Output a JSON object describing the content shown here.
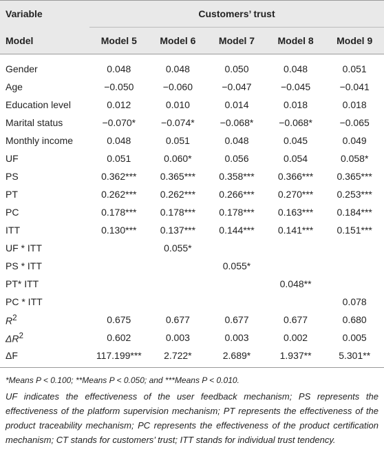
{
  "table": {
    "header": {
      "variable": "Variable",
      "group": "Customers’ trust",
      "model": "Model",
      "columns": [
        "Model 5",
        "Model 6",
        "Model 7",
        "Model 8",
        "Model 9"
      ]
    },
    "rows": [
      {
        "label": "Gender",
        "values": [
          "0.048",
          "0.048",
          "0.050",
          "0.048",
          "0.051"
        ]
      },
      {
        "label": "Age",
        "values": [
          "−0.050",
          "−0.060",
          "−0.047",
          "−0.045",
          "−0.041"
        ]
      },
      {
        "label": "Education level",
        "values": [
          "0.012",
          "0.010",
          "0.014",
          "0.018",
          "0.018"
        ]
      },
      {
        "label": "Marital status",
        "values": [
          "−0.070*",
          "−0.074*",
          "−0.068*",
          "−0.068*",
          "−0.065"
        ]
      },
      {
        "label": "Monthly income",
        "values": [
          "0.048",
          "0.051",
          "0.048",
          "0.045",
          "0.049"
        ]
      },
      {
        "label": "UF",
        "values": [
          "0.051",
          "0.060*",
          "0.056",
          "0.054",
          "0.058*"
        ]
      },
      {
        "label": "PS",
        "values": [
          "0.362***",
          "0.365***",
          "0.358***",
          "0.366***",
          "0.365***"
        ]
      },
      {
        "label": "PT",
        "values": [
          "0.262***",
          "0.262***",
          "0.266***",
          "0.270***",
          "0.253***"
        ]
      },
      {
        "label": "PC",
        "values": [
          "0.178***",
          "0.178***",
          "0.178***",
          "0.163***",
          "0.184***"
        ]
      },
      {
        "label": "ITT",
        "values": [
          "0.130***",
          "0.137***",
          "0.144***",
          "0.141***",
          "0.151***"
        ]
      },
      {
        "label": "UF * ITT",
        "values": [
          null,
          "0.055*",
          null,
          null,
          null
        ]
      },
      {
        "label": "PS * ITT",
        "values": [
          null,
          null,
          "0.055*",
          null,
          null
        ]
      },
      {
        "label": "PT* ITT",
        "values": [
          null,
          null,
          null,
          "0.048**",
          null
        ]
      },
      {
        "label": "PC * ITT",
        "values": [
          null,
          null,
          null,
          null,
          "0.078"
        ]
      },
      {
        "label": "R",
        "label_sup": "2",
        "values": [
          "0.675",
          "0.677",
          "0.677",
          "0.677",
          "0.680"
        ]
      },
      {
        "label": "ΔR",
        "label_sup": "2",
        "values": [
          "0.602",
          "0.003",
          "0.003",
          "0.002",
          "0.005"
        ]
      },
      {
        "label": "ΔF",
        "values": [
          "117.199***",
          "2.722*",
          "2.689*",
          "1.937**",
          "5.301**"
        ]
      }
    ]
  },
  "footnotes": [
    "*Means P < 0.100; **Means P < 0.050; and ***Means P < 0.010.",
    "UF indicates the effectiveness of the user feedback mechanism; PS represents the effectiveness of the platform supervision mechanism; PT represents the effectiveness of the product traceability mechanism; PC represents the effectiveness of the product certification mechanism; CT stands for customers’ trust; ITT stands for individual trust tendency."
  ]
}
